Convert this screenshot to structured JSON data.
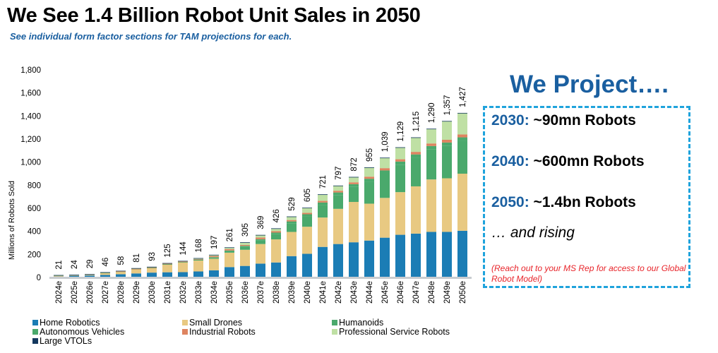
{
  "header": {
    "title": "We See 1.4 Billion Robot Unit Sales in 2050",
    "subtitle": "See individual form factor sections for TAM projections for each."
  },
  "projection": {
    "title": "We Project….",
    "lines": [
      {
        "year": "2030:",
        "text": " ~90mn Robots"
      },
      {
        "year": "2040:",
        "text": " ~600mn Robots"
      },
      {
        "year": "2050:",
        "text": " ~1.4bn Robots"
      }
    ],
    "rising": "… and rising",
    "note": "(Reach out to your MS Rep for access to our Global Robot Model)"
  },
  "colors": {
    "home": "#1b7db5",
    "drones": "#e8c982",
    "humanoids": "#4aa96c",
    "av": "#4aa96c",
    "industrial": "#de8460",
    "psr": "#bfe0a4",
    "vtol": "#14385e",
    "axis": "#c8ccd0",
    "accent": "#1a5fa0",
    "box_border": "#1fa3dc",
    "note": "#e8242a"
  },
  "chart_data": {
    "type": "bar",
    "stacked": true,
    "title": "",
    "xlabel": "",
    "ylabel": "Millions of Robots Sold",
    "ylim": [
      0,
      1800
    ],
    "yticks": [
      0,
      200,
      400,
      600,
      800,
      1000,
      1200,
      1400,
      1600,
      1800
    ],
    "ytick_labels": [
      "0",
      "200",
      "400",
      "600",
      "800",
      "1,000",
      "1,200",
      "1,400",
      "1,600",
      "1,800"
    ],
    "grid": false,
    "legend_position": "bottom",
    "categories": [
      "2024e",
      "2025e",
      "2026e",
      "2027e",
      "2028e",
      "2029e",
      "2030e",
      "2031e",
      "2032e",
      "2033e",
      "2034e",
      "2035e",
      "2036e",
      "2037e",
      "2038e",
      "2039e",
      "2040e",
      "2041e",
      "2042e",
      "2043e",
      "2044e",
      "2045e",
      "2046e",
      "2047e",
      "2048e",
      "2049e",
      "2050e"
    ],
    "totals": [
      21,
      24,
      29,
      46,
      58,
      81,
      93,
      125,
      144,
      168,
      197,
      261,
      305,
      369,
      426,
      529,
      605,
      721,
      797,
      872,
      955,
      1039,
      1129,
      1215,
      1290,
      1357,
      1427
    ],
    "total_labels": [
      "21",
      "24",
      "29",
      "46",
      "58",
      "81",
      "93",
      "125",
      "144",
      "168",
      "197",
      "261",
      "305",
      "369",
      "426",
      "529",
      "605",
      "721",
      "797",
      "872",
      "955",
      "1,039",
      "1,129",
      "1,215",
      "1,290",
      "1,357",
      "1,427"
    ],
    "series": [
      {
        "key": "home",
        "name": "Home Robotics",
        "values": [
          8,
          14,
          17,
          22,
          28,
          35,
          42,
          45,
          46,
          52,
          62,
          90,
          100,
          120,
          130,
          185,
          205,
          265,
          290,
          305,
          320,
          345,
          370,
          380,
          395,
          395,
          405
        ]
      },
      {
        "key": "drones",
        "name": "Small Drones",
        "values": [
          10,
          6,
          7,
          18,
          24,
          38,
          42,
          68,
          86,
          95,
          100,
          125,
          140,
          170,
          200,
          210,
          235,
          255,
          305,
          350,
          320,
          345,
          370,
          410,
          455,
          465,
          495
        ]
      },
      {
        "key": "humanoids",
        "name": "Humanoids",
        "values": [
          0,
          0,
          0,
          0,
          0,
          0,
          1,
          2,
          3,
          7,
          8,
          12,
          24,
          30,
          45,
          75,
          90,
          110,
          120,
          130,
          190,
          210,
          235,
          245,
          260,
          280,
          285
        ]
      },
      {
        "key": "av",
        "name": "Autonomous Vehicles",
        "values": [
          1,
          1,
          1,
          1,
          1,
          2,
          2,
          4,
          3,
          5,
          6,
          7,
          10,
          12,
          14,
          16,
          18,
          20,
          22,
          24,
          26,
          28,
          30,
          32,
          30,
          30,
          30
        ]
      },
      {
        "key": "industrial",
        "name": "Industrial Robots",
        "values": [
          0,
          1,
          1,
          3,
          1,
          1,
          1,
          1,
          1,
          1,
          10,
          12,
          8,
          14,
          12,
          12,
          12,
          14,
          15,
          16,
          18,
          20,
          20,
          22,
          22,
          24,
          25
        ]
      },
      {
        "key": "psr",
        "name": "Professional Service Robots",
        "values": [
          1,
          1,
          2,
          1,
          3,
          4,
          4,
          4,
          4,
          7,
          10,
          14,
          22,
          22,
          24,
          30,
          44,
          56,
          44,
          46,
          80,
          90,
          103,
          125,
          127,
          162,
          185
        ]
      },
      {
        "key": "vtol",
        "name": "Large VTOLs",
        "values": [
          1,
          1,
          1,
          1,
          1,
          1,
          1,
          1,
          1,
          1,
          1,
          1,
          1,
          1,
          1,
          1,
          1,
          1,
          1,
          1,
          1,
          1,
          1,
          1,
          1,
          1,
          2
        ]
      }
    ]
  }
}
